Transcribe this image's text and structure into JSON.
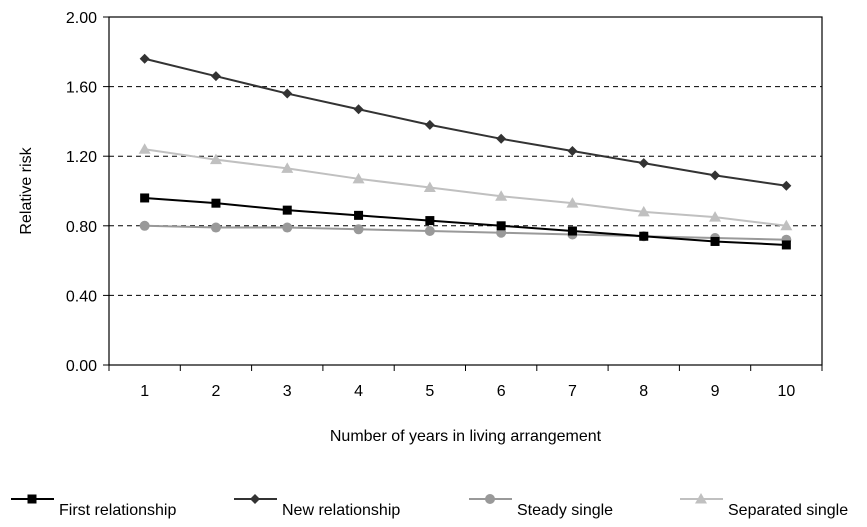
{
  "chart_data": {
    "type": "line",
    "title": "",
    "xlabel": "Number of years in living arrangement",
    "ylabel": "Relative risk",
    "x": [
      1,
      2,
      3,
      4,
      5,
      6,
      7,
      8,
      9,
      10
    ],
    "x_tick_labels": [
      "1",
      "2",
      "3",
      "4",
      "5",
      "6",
      "7",
      "8",
      "9",
      "10"
    ],
    "y_ticks": [
      0,
      0.4,
      0.8,
      1.2,
      1.6,
      2.0
    ],
    "y_tick_labels": [
      "0.00",
      "0.40",
      "0.80",
      "1.20",
      "1.60",
      "2.00"
    ],
    "ylim": [
      0,
      2.0
    ],
    "grid": "horizontal dashed",
    "legend_position": "bottom",
    "series": [
      {
        "name": "First relationship",
        "marker": "square",
        "color": "#000000",
        "values": [
          0.96,
          0.93,
          0.89,
          0.86,
          0.83,
          0.8,
          0.77,
          0.74,
          0.71,
          0.69
        ]
      },
      {
        "name": "New relationship",
        "marker": "diamond",
        "color": "#333333",
        "values": [
          1.76,
          1.66,
          1.56,
          1.47,
          1.38,
          1.3,
          1.23,
          1.16,
          1.09,
          1.03
        ]
      },
      {
        "name": "Steady single",
        "marker": "circle",
        "color": "#999999",
        "values": [
          0.8,
          0.79,
          0.79,
          0.78,
          0.77,
          0.76,
          0.75,
          0.74,
          0.73,
          0.72
        ]
      },
      {
        "name": "Separated single",
        "marker": "triangle",
        "color": "#c0c0c0",
        "values": [
          1.24,
          1.18,
          1.13,
          1.07,
          1.02,
          0.97,
          0.93,
          0.88,
          0.85,
          0.8
        ]
      }
    ]
  }
}
